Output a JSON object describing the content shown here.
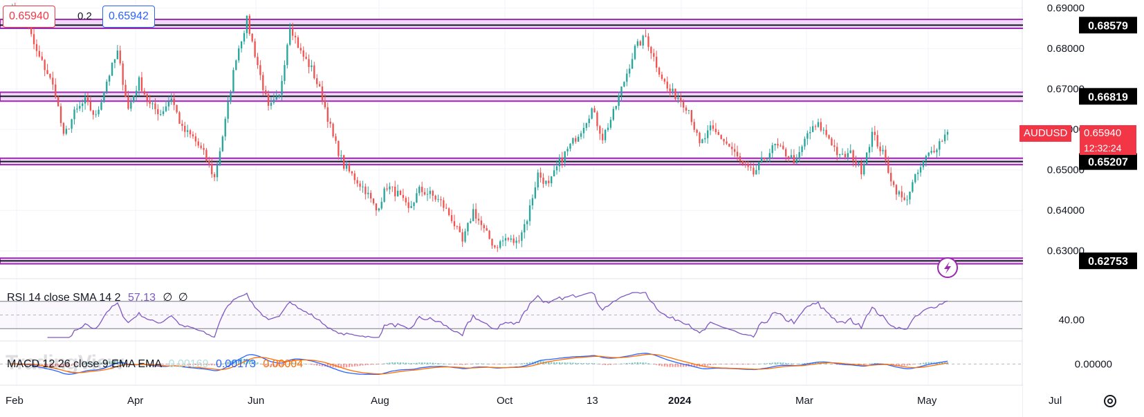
{
  "symbol": "AUDUSD",
  "last_price": "0.65940",
  "countdown": "12:32:24",
  "bid": "0.65940",
  "spread": "0.2",
  "ask": "0.65942",
  "watermark": "TradingView",
  "colors": {
    "up": "#26a69a",
    "down": "#ef5350",
    "zone_fill": "#f0d8f7",
    "zone_border": "#9c27b0",
    "rsi_line": "#7e57c2",
    "macd_line": "#2962ff",
    "signal_line": "#ff6d00"
  },
  "chart_data": {
    "type": "candlestick",
    "price_axis": {
      "min": 0.625,
      "max": 0.692,
      "ticks": [
        "0.69000",
        "0.68000",
        "0.67000",
        "0.66000",
        "0.65000",
        "0.64000",
        "0.63000"
      ]
    },
    "time_axis": {
      "labels": [
        "Feb",
        "Apr",
        "Jun",
        "Aug",
        "Oct",
        "13",
        "2024",
        "Mar",
        "May",
        "Jul"
      ]
    },
    "zones": [
      {
        "level": 0.68579,
        "label": "0.68579",
        "low": 0.685,
        "high": 0.6872
      },
      {
        "level": 0.66819,
        "label": "0.66819",
        "low": 0.667,
        "high": 0.6692
      },
      {
        "level": 0.65207,
        "label": "0.65207",
        "low": 0.6513,
        "high": 0.6529
      },
      {
        "level": 0.62753,
        "label": "0.62753",
        "low": 0.6268,
        "high": 0.6282
      }
    ],
    "close_anchors": [
      [
        0,
        0.6895
      ],
      [
        4,
        0.688
      ],
      [
        7,
        0.685
      ],
      [
        10,
        0.679
      ],
      [
        14,
        0.674
      ],
      [
        17,
        0.669
      ],
      [
        20,
        0.658
      ],
      [
        24,
        0.664
      ],
      [
        28,
        0.667
      ],
      [
        32,
        0.663
      ],
      [
        36,
        0.672
      ],
      [
        40,
        0.679
      ],
      [
        44,
        0.665
      ],
      [
        48,
        0.672
      ],
      [
        52,
        0.666
      ],
      [
        56,
        0.664
      ],
      [
        60,
        0.668
      ],
      [
        64,
        0.66
      ],
      [
        68,
        0.658
      ],
      [
        72,
        0.654
      ],
      [
        76,
        0.648
      ],
      [
        80,
        0.662
      ],
      [
        84,
        0.678
      ],
      [
        88,
        0.687
      ],
      [
        92,
        0.676
      ],
      [
        96,
        0.665
      ],
      [
        100,
        0.668
      ],
      [
        104,
        0.686
      ],
      [
        108,
        0.679
      ],
      [
        112,
        0.675
      ],
      [
        116,
        0.668
      ],
      [
        120,
        0.658
      ],
      [
        124,
        0.651
      ],
      [
        128,
        0.648
      ],
      [
        132,
        0.645
      ],
      [
        136,
        0.64
      ],
      [
        140,
        0.646
      ],
      [
        144,
        0.644
      ],
      [
        148,
        0.64
      ],
      [
        152,
        0.645
      ],
      [
        156,
        0.644
      ],
      [
        160,
        0.642
      ],
      [
        164,
        0.638
      ],
      [
        168,
        0.632
      ],
      [
        172,
        0.64
      ],
      [
        176,
        0.635
      ],
      [
        180,
        0.631
      ],
      [
        184,
        0.633
      ],
      [
        188,
        0.632
      ],
      [
        192,
        0.638
      ],
      [
        196,
        0.649
      ],
      [
        200,
        0.646
      ],
      [
        204,
        0.652
      ],
      [
        208,
        0.656
      ],
      [
        212,
        0.66
      ],
      [
        216,
        0.665
      ],
      [
        220,
        0.658
      ],
      [
        224,
        0.664
      ],
      [
        228,
        0.672
      ],
      [
        232,
        0.68
      ],
      [
        236,
        0.683
      ],
      [
        240,
        0.676
      ],
      [
        244,
        0.67
      ],
      [
        248,
        0.668
      ],
      [
        252,
        0.665
      ],
      [
        256,
        0.656
      ],
      [
        260,
        0.66
      ],
      [
        264,
        0.658
      ],
      [
        268,
        0.655
      ],
      [
        272,
        0.651
      ],
      [
        276,
        0.649
      ],
      [
        280,
        0.653
      ],
      [
        284,
        0.656
      ],
      [
        288,
        0.654
      ],
      [
        292,
        0.652
      ],
      [
        296,
        0.659
      ],
      [
        300,
        0.661
      ],
      [
        304,
        0.658
      ],
      [
        308,
        0.653
      ],
      [
        312,
        0.654
      ],
      [
        316,
        0.65
      ],
      [
        320,
        0.659
      ],
      [
        324,
        0.654
      ],
      [
        328,
        0.646
      ],
      [
        332,
        0.642
      ],
      [
        336,
        0.648
      ],
      [
        340,
        0.653
      ],
      [
        344,
        0.656
      ],
      [
        348,
        0.6594
      ]
    ],
    "rsi": {
      "label": "RSI 14 close SMA 14 2",
      "value": "57.13",
      "na1": "∅",
      "na2": "∅",
      "range": [
        15,
        85
      ],
      "ticks": [
        "40.00"
      ],
      "levels": [
        70,
        50,
        30
      ]
    },
    "macd": {
      "label": "MACD 12 26 close 9 EMA EMA",
      "histogram": "0.00169",
      "macd": "0.00173",
      "signal": "0.00004",
      "ticks": [
        "0.00000"
      ],
      "range": [
        -0.012,
        0.01
      ]
    }
  }
}
